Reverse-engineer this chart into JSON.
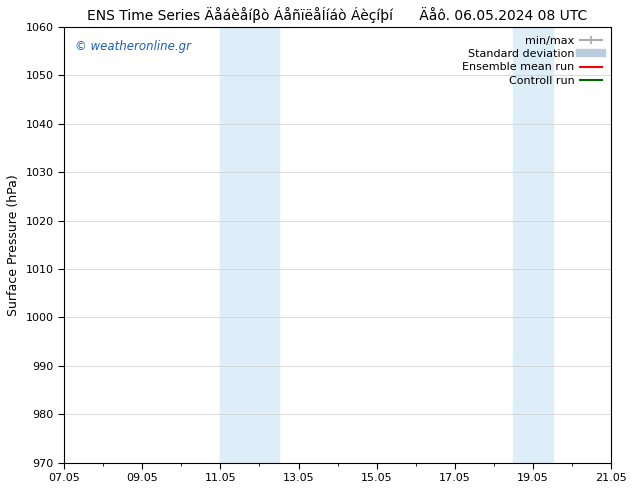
{
  "title_main": "ENS Time Series Äåáèåíβò ÁåñïëåÍíáò Áèçíþí",
  "title_date": "Äåô. 06.05.2024 08 UTC",
  "ylabel": "Surface Pressure (hPa)",
  "ylim": [
    970,
    1060
  ],
  "yticks": [
    970,
    980,
    990,
    1000,
    1010,
    1020,
    1030,
    1040,
    1050,
    1060
  ],
  "xtick_labels": [
    "07.05",
    "09.05",
    "11.05",
    "13.05",
    "15.05",
    "17.05",
    "19.05",
    "21.05"
  ],
  "xtick_positions": [
    0,
    2,
    4,
    6,
    8,
    10,
    12,
    14
  ],
  "x_min": 0,
  "x_max": 14,
  "shade_bands": [
    {
      "x_start": 4.0,
      "x_end": 5.5
    },
    {
      "x_start": 11.5,
      "x_end": 12.5
    }
  ],
  "shade_color": "#ddeef8",
  "watermark": "© weatheronline.gr",
  "watermark_color": "#1a5fbb",
  "legend_items": [
    {
      "label": "min/max",
      "color": "#aaaaaa",
      "lw": 1.5,
      "linestyle": "-",
      "marker": "|",
      "is_minmax": true
    },
    {
      "label": "Standard deviation",
      "color": "#bbccdd",
      "lw": 6,
      "linestyle": "-",
      "is_minmax": false
    },
    {
      "label": "Ensemble mean run",
      "color": "#ff0000",
      "lw": 1.5,
      "linestyle": "-",
      "is_minmax": false
    },
    {
      "label": "Controll run",
      "color": "#006600",
      "lw": 1.5,
      "linestyle": "-",
      "is_minmax": false
    }
  ],
  "background_color": "#ffffff",
  "grid_color": "#cccccc",
  "title_fontsize": 10,
  "tick_fontsize": 8,
  "ylabel_fontsize": 9,
  "legend_fontsize": 8
}
